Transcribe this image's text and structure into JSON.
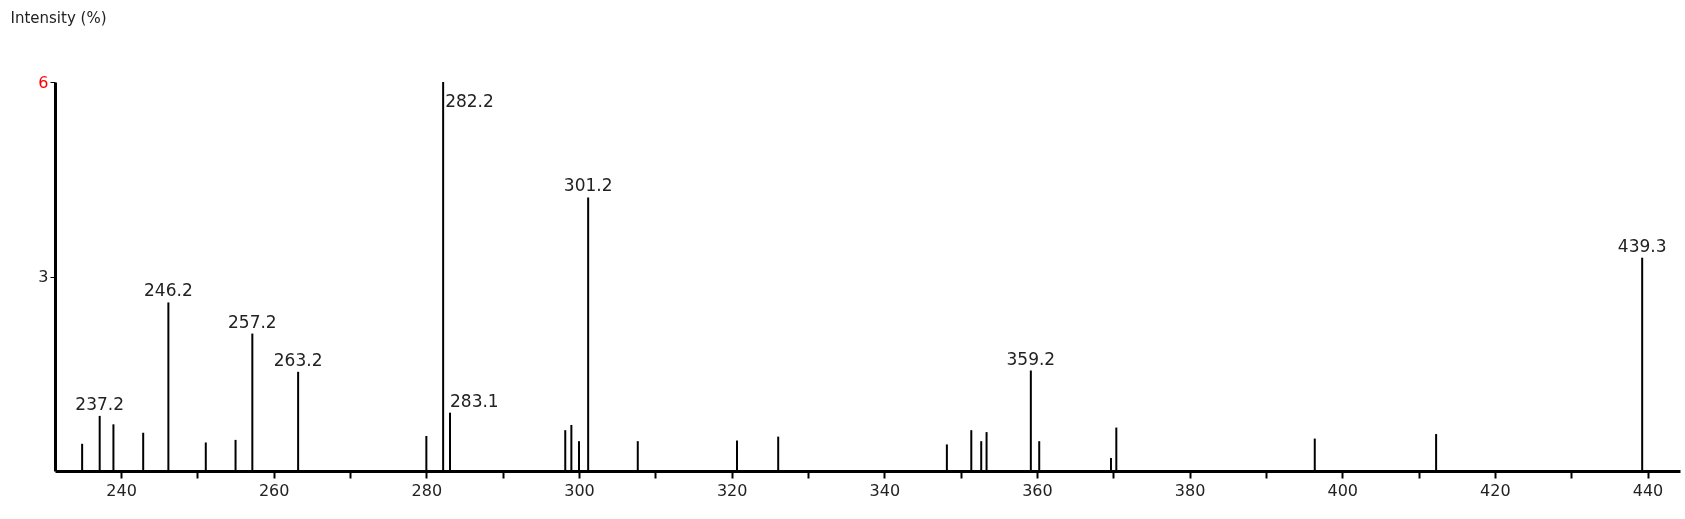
{
  "chart_data": {
    "type": "bar",
    "ylabel": "Intensity (%)",
    "x": [
      234.9,
      237.2,
      239.0,
      242.9,
      246.2,
      251.1,
      255.0,
      257.2,
      263.2,
      280.0,
      282.2,
      283.1,
      298.2,
      299.0,
      300.0,
      301.2,
      307.7,
      320.7,
      326.1,
      348.2,
      351.4,
      352.7,
      353.4,
      359.2,
      360.3,
      369.7,
      370.4,
      396.4,
      412.3,
      439.3
    ],
    "series": [
      {
        "color": "#000000",
        "values": [
          0.42,
          0.85,
          0.72,
          0.59,
          2.6,
          0.44,
          0.48,
          2.12,
          1.53,
          0.54,
          6.0,
          0.9,
          0.63,
          0.71,
          0.46,
          4.22,
          0.46,
          0.47,
          0.53,
          0.41,
          0.63,
          0.46,
          0.6,
          1.55,
          0.46,
          0.2,
          0.67,
          0.5,
          0.57,
          3.29
        ]
      }
    ],
    "annotations": [
      {
        "text": "237.2",
        "x": 237.2,
        "y": 0.85
      },
      {
        "text": "246.2",
        "x": 246.2,
        "y": 2.6
      },
      {
        "text": "257.2",
        "x": 257.2,
        "y": 2.12
      },
      {
        "text": "263.2",
        "x": 263.2,
        "y": 1.53
      },
      {
        "text": "282.2",
        "x": 282.2,
        "y": 6.0
      },
      {
        "text": "283.1",
        "x": 283.1,
        "y": 0.9
      },
      {
        "text": "301.2",
        "x": 301.2,
        "y": 4.22
      },
      {
        "text": "359.2",
        "x": 359.2,
        "y": 1.55
      },
      {
        "text": "439.3",
        "x": 439.3,
        "y": 3.29
      }
    ],
    "xlim": [
      232,
      443.6
    ],
    "ylim": [
      0,
      6
    ],
    "xticks": [
      240,
      {
        "value": 250,
        "label": null
      },
      260,
      {
        "value": 270,
        "label": null
      },
      280,
      {
        "value": 290,
        "label": null
      },
      300,
      {
        "value": 310,
        "label": null
      },
      320,
      {
        "value": 330,
        "label": null
      },
      340,
      {
        "value": 350,
        "label": null
      },
      360,
      {
        "value": 370,
        "label": null
      },
      380,
      {
        "value": 390,
        "label": null
      },
      400,
      {
        "value": 410,
        "label": null
      },
      420,
      {
        "value": 430,
        "label": null
      },
      440
    ],
    "yticks": [
      3,
      6
    ],
    "grid": false
  }
}
